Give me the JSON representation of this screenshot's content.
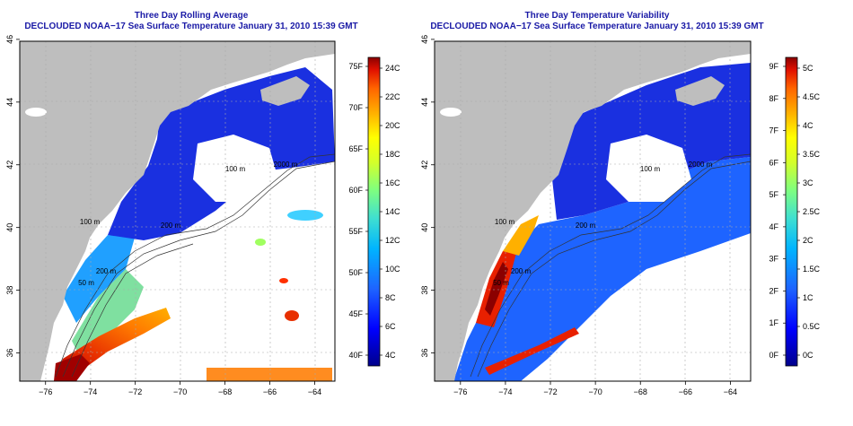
{
  "left_map": {
    "title_line1": "Three Day Rolling Average",
    "title_line2": "DECLOUDED NOAA−17 Sea Surface Temperature January 31, 2010 15:39 GMT",
    "x_ticks": [
      "−76",
      "−74",
      "−72",
      "−70",
      "−68",
      "−66",
      "−64"
    ],
    "y_ticks": [
      "36",
      "38",
      "40",
      "42",
      "44",
      "46"
    ],
    "contour_labels": [
      "2000 m",
      "100 m",
      "200 m",
      "100 m",
      "50 m",
      "200 m"
    ],
    "colorbar_f": [
      "75F",
      "70F",
      "65F",
      "60F",
      "55F",
      "50F",
      "45F",
      "40F"
    ],
    "colorbar_c": [
      "24C",
      "22C",
      "20C",
      "18C",
      "16C",
      "14C",
      "12C",
      "10C",
      "8C",
      "6C",
      "4C"
    ]
  },
  "right_map": {
    "title_line1": "Three Day Temperature Variability",
    "title_line2": "DECLOUDED NOAA−17 Sea Surface Temperature January 31, 2010 15:39 GMT",
    "x_ticks": [
      "−76",
      "−74",
      "−72",
      "−70",
      "−68",
      "−66",
      "−64"
    ],
    "y_ticks": [
      "36",
      "38",
      "40",
      "42",
      "44",
      "46"
    ],
    "contour_labels": [
      "2000 m",
      "100 m",
      "200 m",
      "100 m",
      "50 m",
      "200 m"
    ],
    "colorbar_f": [
      "9F",
      "8F",
      "7F",
      "6F",
      "5F",
      "4F",
      "3F",
      "2F",
      "1F",
      "0F"
    ],
    "colorbar_c": [
      "5C",
      "4.5C",
      "4C",
      "3.5C",
      "3C",
      "2.5C",
      "2C",
      "1.5C",
      "1C",
      "0.5C",
      "0C"
    ]
  },
  "colors": {
    "land": "#bebebe",
    "title": "#1a1aa6",
    "no_data": "#ffffff",
    "scale": [
      "#00008b",
      "#0000ff",
      "#1e64ff",
      "#00b4ff",
      "#40e0d0",
      "#7fff7f",
      "#d4ff2a",
      "#ffff00",
      "#ffb000",
      "#ff6400",
      "#e01000",
      "#8b0000"
    ]
  }
}
